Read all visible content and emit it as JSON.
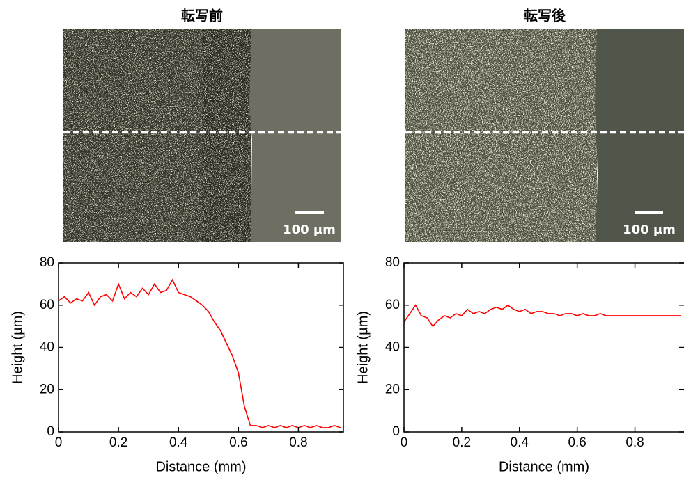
{
  "chart_data": [
    {
      "type": "line",
      "title": "転写前",
      "scale_bar_label": "100 µm",
      "xlabel": "Distance (mm)",
      "ylabel": "Height (µm)",
      "color": "#ff0000",
      "x": [
        0,
        0.02,
        0.04,
        0.06,
        0.08,
        0.1,
        0.12,
        0.14,
        0.16,
        0.18,
        0.2,
        0.22,
        0.24,
        0.26,
        0.28,
        0.3,
        0.32,
        0.34,
        0.36,
        0.38,
        0.4,
        0.42,
        0.44,
        0.46,
        0.48,
        0.5,
        0.52,
        0.54,
        0.56,
        0.58,
        0.6,
        0.62,
        0.64,
        0.66,
        0.68,
        0.7,
        0.72,
        0.74,
        0.76,
        0.78,
        0.8,
        0.82,
        0.84,
        0.86,
        0.88,
        0.9,
        0.92,
        0.94
      ],
      "values": [
        62,
        64,
        61,
        63,
        62,
        66,
        60,
        64,
        65,
        62,
        70,
        63,
        66,
        64,
        68,
        65,
        70,
        66,
        67,
        72,
        66,
        65,
        64,
        62,
        60,
        57,
        52,
        48,
        42,
        36,
        28,
        12,
        3,
        3,
        2,
        3,
        2,
        3,
        2,
        3,
        2,
        3,
        2,
        3,
        2,
        2,
        3,
        2
      ],
      "xlim": [
        0,
        0.95
      ],
      "ylim": [
        0,
        80
      ],
      "xticks": [
        0,
        0.2,
        0.4,
        0.6,
        0.8
      ],
      "yticks": [
        0,
        20,
        40,
        60,
        80
      ]
    },
    {
      "type": "line",
      "title": "転写後",
      "scale_bar_label": "100 µm",
      "xlabel": "Distance (mm)",
      "ylabel": "Height (µm)",
      "color": "#ff0000",
      "x": [
        0,
        0.02,
        0.04,
        0.06,
        0.08,
        0.1,
        0.12,
        0.14,
        0.16,
        0.18,
        0.2,
        0.22,
        0.24,
        0.26,
        0.28,
        0.3,
        0.32,
        0.34,
        0.36,
        0.38,
        0.4,
        0.42,
        0.44,
        0.46,
        0.48,
        0.5,
        0.52,
        0.54,
        0.56,
        0.58,
        0.6,
        0.62,
        0.64,
        0.66,
        0.68,
        0.7,
        0.72,
        0.74,
        0.76,
        0.78,
        0.8,
        0.82,
        0.84,
        0.86,
        0.88,
        0.9,
        0.92,
        0.94,
        0.96
      ],
      "values": [
        52,
        56,
        60,
        55,
        54,
        50,
        53,
        55,
        54,
        56,
        55,
        58,
        56,
        57,
        56,
        58,
        59,
        58,
        60,
        58,
        57,
        58,
        56,
        57,
        57,
        56,
        56,
        55,
        56,
        56,
        55,
        56,
        55,
        55,
        56,
        55,
        55,
        55,
        55,
        55,
        55,
        55,
        55,
        55,
        55,
        55,
        55,
        55,
        55
      ],
      "xlim": [
        0,
        0.97
      ],
      "ylim": [
        0,
        80
      ],
      "xticks": [
        0,
        0.2,
        0.4,
        0.6,
        0.8
      ],
      "yticks": [
        0,
        20,
        40,
        60,
        80
      ]
    }
  ]
}
